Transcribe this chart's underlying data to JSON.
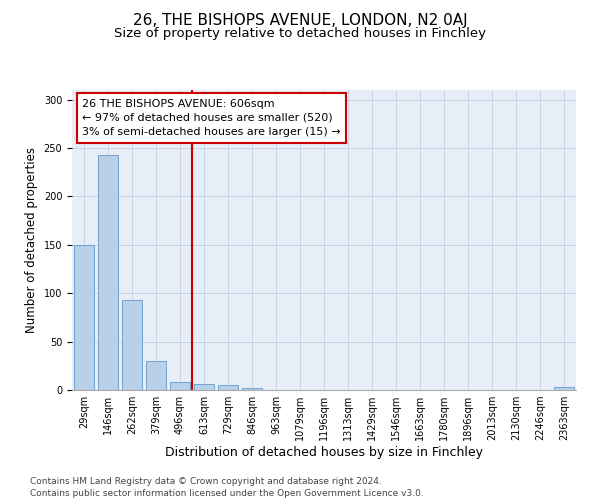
{
  "title": "26, THE BISHOPS AVENUE, LONDON, N2 0AJ",
  "subtitle": "Size of property relative to detached houses in Finchley",
  "xlabel": "Distribution of detached houses by size in Finchley",
  "ylabel": "Number of detached properties",
  "footnote1": "Contains HM Land Registry data © Crown copyright and database right 2024.",
  "footnote2": "Contains public sector information licensed under the Open Government Licence v3.0.",
  "annotation_line1": "26 THE BISHOPS AVENUE: 606sqm",
  "annotation_line2": "← 97% of detached houses are smaller (520)",
  "annotation_line3": "3% of semi-detached houses are larger (15) →",
  "bar_color": "#b8d0e8",
  "bar_edge_color": "#6699cc",
  "vline_color": "#cc0000",
  "annotation_box_edge": "#cc0000",
  "grid_color": "#c8d4e4",
  "background_color": "#e8eef8",
  "bins": [
    "29sqm",
    "146sqm",
    "262sqm",
    "379sqm",
    "496sqm",
    "613sqm",
    "729sqm",
    "846sqm",
    "963sqm",
    "1079sqm",
    "1196sqm",
    "1313sqm",
    "1429sqm",
    "1546sqm",
    "1663sqm",
    "1780sqm",
    "1896sqm",
    "2013sqm",
    "2130sqm",
    "2246sqm",
    "2363sqm"
  ],
  "values": [
    150,
    243,
    93,
    30,
    8,
    6,
    5,
    2,
    0,
    0,
    0,
    0,
    0,
    0,
    0,
    0,
    0,
    0,
    0,
    0,
    3
  ],
  "vline_bin_index": 5,
  "ylim": [
    0,
    310
  ],
  "yticks": [
    0,
    50,
    100,
    150,
    200,
    250,
    300
  ],
  "title_fontsize": 11,
  "subtitle_fontsize": 9.5,
  "xlabel_fontsize": 9,
  "ylabel_fontsize": 8.5,
  "tick_fontsize": 7,
  "annotation_fontsize": 8,
  "footnote_fontsize": 6.5
}
